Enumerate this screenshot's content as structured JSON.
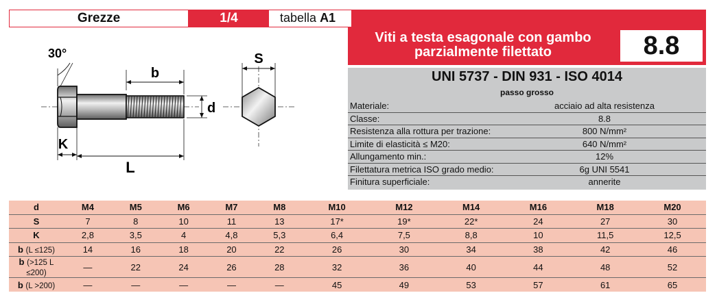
{
  "header": {
    "category": "Grezze",
    "size": "1/4",
    "table_prefix": "tabella",
    "table_code": "A1"
  },
  "title": {
    "line1": "Viti a testa esagonale con gambo",
    "line2": "parzialmente filettato",
    "grade": "8.8"
  },
  "spec": {
    "norm": "UNI 5737 - DIN 931 - ISO 4014",
    "pitch": "passo grosso",
    "rows": [
      {
        "label": "Materiale:",
        "value": "acciaio ad alta resistenza"
      },
      {
        "label": "Classe:",
        "value": "8.8"
      },
      {
        "label": "Resistenza alla rottura per trazione:",
        "value": "800 N/mm²"
      },
      {
        "label": "Limite di elasticità ≤ M20:",
        "value": "640 N/mm²"
      },
      {
        "label": "Allungamento min.:",
        "value": "12%"
      },
      {
        "label": "Filettatura metrica ISO grado medio:",
        "value": "6g UNI 5541"
      },
      {
        "label": "Finitura superficiale:",
        "value": "annerite"
      }
    ]
  },
  "drawing": {
    "angle": "30°",
    "b": "b",
    "d": "d",
    "k": "K",
    "l": "L",
    "s": "S"
  },
  "table": {
    "columns": [
      "d",
      "M4",
      "M5",
      "M6",
      "M7",
      "M8",
      "M10",
      "M12",
      "M14",
      "M16",
      "M18",
      "M20"
    ],
    "rows": [
      {
        "key": "S",
        "cond": "",
        "values": [
          "7",
          "8",
          "10",
          "11",
          "13",
          "17*",
          "19*",
          "22*",
          "24",
          "27",
          "30"
        ]
      },
      {
        "key": "K",
        "cond": "",
        "values": [
          "2,8",
          "3,5",
          "4",
          "4,8",
          "5,3",
          "6,4",
          "7,5",
          "8,8",
          "10",
          "11,5",
          "12,5"
        ]
      },
      {
        "key": "b",
        "cond": "(L ≤125)",
        "values": [
          "14",
          "16",
          "18",
          "20",
          "22",
          "26",
          "30",
          "34",
          "38",
          "42",
          "46"
        ]
      },
      {
        "key": "b",
        "cond": "(>125 L ≤200)",
        "values": [
          "—",
          "22",
          "24",
          "26",
          "28",
          "32",
          "36",
          "40",
          "44",
          "48",
          "52"
        ]
      },
      {
        "key": "b",
        "cond": "(L >200)",
        "values": [
          "—",
          "—",
          "—",
          "—",
          "—",
          "45",
          "49",
          "53",
          "57",
          "61",
          "65"
        ]
      }
    ]
  }
}
